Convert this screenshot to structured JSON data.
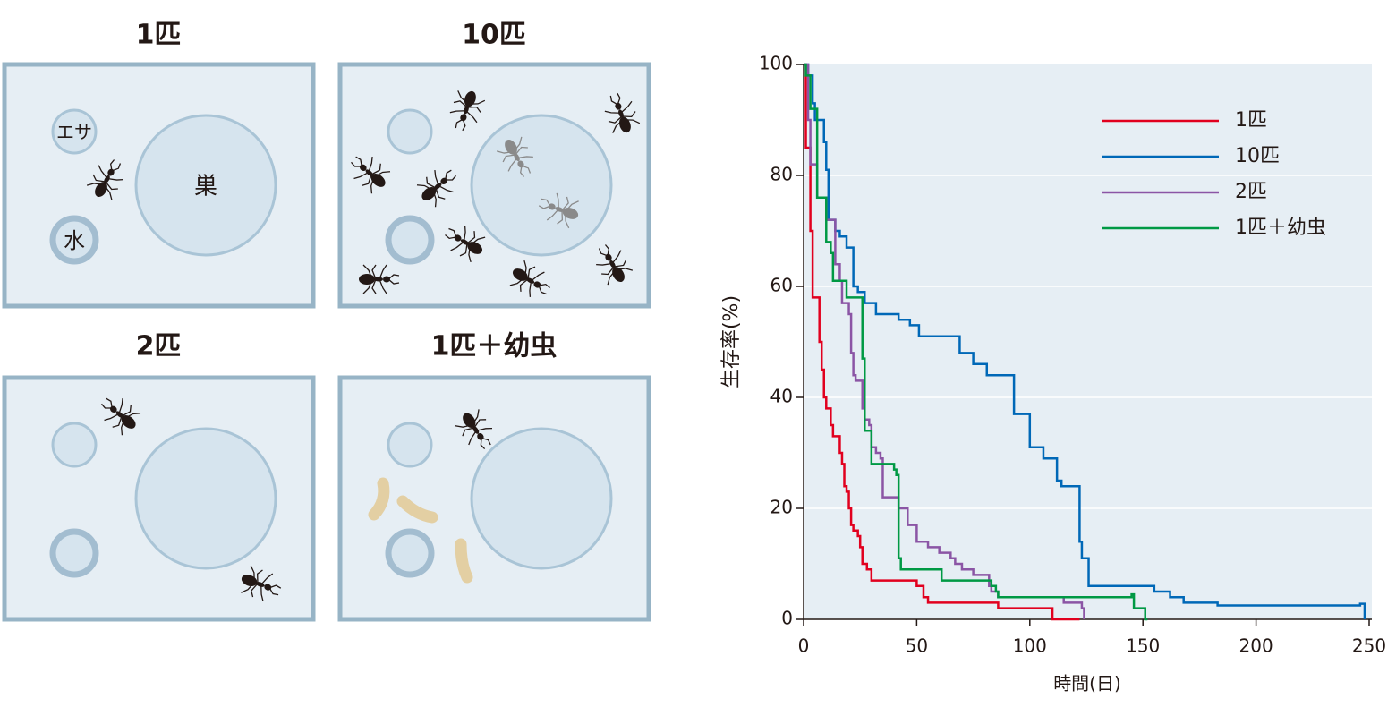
{
  "panels": [
    {
      "title": "1匹",
      "labels": [
        "エサ",
        "巣",
        "水"
      ]
    },
    {
      "title": "10匹"
    },
    {
      "title": "2匹"
    },
    {
      "title": "1匹＋幼虫"
    }
  ],
  "chart_data": {
    "type": "line",
    "step": true,
    "xlabel": "時間(日)",
    "ylabel": "生存率(%)",
    "xlim": [
      0,
      250
    ],
    "xticks": [
      0,
      50,
      100,
      150,
      200,
      250
    ],
    "ylim": [
      0,
      100
    ],
    "yticks": [
      0,
      20,
      40,
      60,
      80,
      100
    ],
    "grid": true,
    "legend": "upper right",
    "series": [
      {
        "name": "1匹",
        "color": "#e1001e",
        "x": [
          0,
          1,
          3,
          4,
          7,
          8,
          9,
          10,
          12,
          13,
          16,
          17,
          18,
          19,
          20,
          21,
          22,
          24,
          25,
          26,
          28,
          30,
          50,
          53,
          55,
          86,
          110,
          122
        ],
        "values": [
          100,
          85,
          70,
          58,
          50,
          45,
          40,
          38,
          35,
          33,
          30,
          28,
          24,
          23,
          20,
          17,
          16,
          15,
          13,
          10,
          9,
          7,
          6,
          4,
          3,
          2,
          0,
          0
        ]
      },
      {
        "name": "10匹",
        "color": "#0068b7",
        "x": [
          0,
          2,
          4,
          5,
          9,
          10,
          11,
          14,
          16,
          19,
          22,
          24,
          27,
          32,
          42,
          47,
          51,
          69,
          75,
          81,
          93,
          100,
          106,
          112,
          114,
          122,
          123,
          126,
          155,
          162,
          168,
          183,
          246,
          248
        ],
        "values": [
          100,
          98,
          93,
          90,
          86,
          81,
          72,
          70,
          69,
          67,
          60,
          59,
          57,
          55,
          54,
          53,
          51,
          48,
          46,
          44,
          37,
          31,
          29,
          25,
          24,
          14,
          11,
          6,
          5,
          4,
          3,
          2.5,
          2.8,
          0
        ]
      },
      {
        "name": "2匹",
        "color": "#8b55a5",
        "x": [
          0,
          2,
          3,
          6,
          10,
          14,
          16,
          17,
          20,
          21,
          22,
          23,
          26,
          27,
          29,
          30,
          32,
          34,
          35,
          42,
          46,
          50,
          55,
          60,
          65,
          67,
          70,
          75,
          82,
          83,
          86,
          105,
          115,
          123,
          124
        ],
        "values": [
          100,
          90,
          82,
          76,
          72,
          64,
          61,
          57,
          55,
          48,
          44,
          43,
          38,
          36,
          35,
          31,
          30,
          29,
          22,
          20,
          17,
          14,
          13,
          12,
          11,
          10,
          9,
          8,
          6,
          5,
          4,
          4,
          3,
          2,
          0
        ]
      },
      {
        "name": "1匹＋幼虫",
        "color": "#009944",
        "x": [
          0,
          1,
          3,
          6,
          10,
          12,
          13,
          19,
          26,
          27,
          30,
          40,
          41,
          42,
          43,
          61,
          83,
          85,
          86,
          145,
          146,
          151,
          152
        ],
        "values": [
          100,
          98,
          92,
          76,
          68,
          66,
          61,
          58,
          47,
          34,
          28,
          27,
          26,
          11,
          9,
          7,
          6,
          5,
          4,
          4.5,
          2,
          0,
          0
        ]
      }
    ]
  }
}
